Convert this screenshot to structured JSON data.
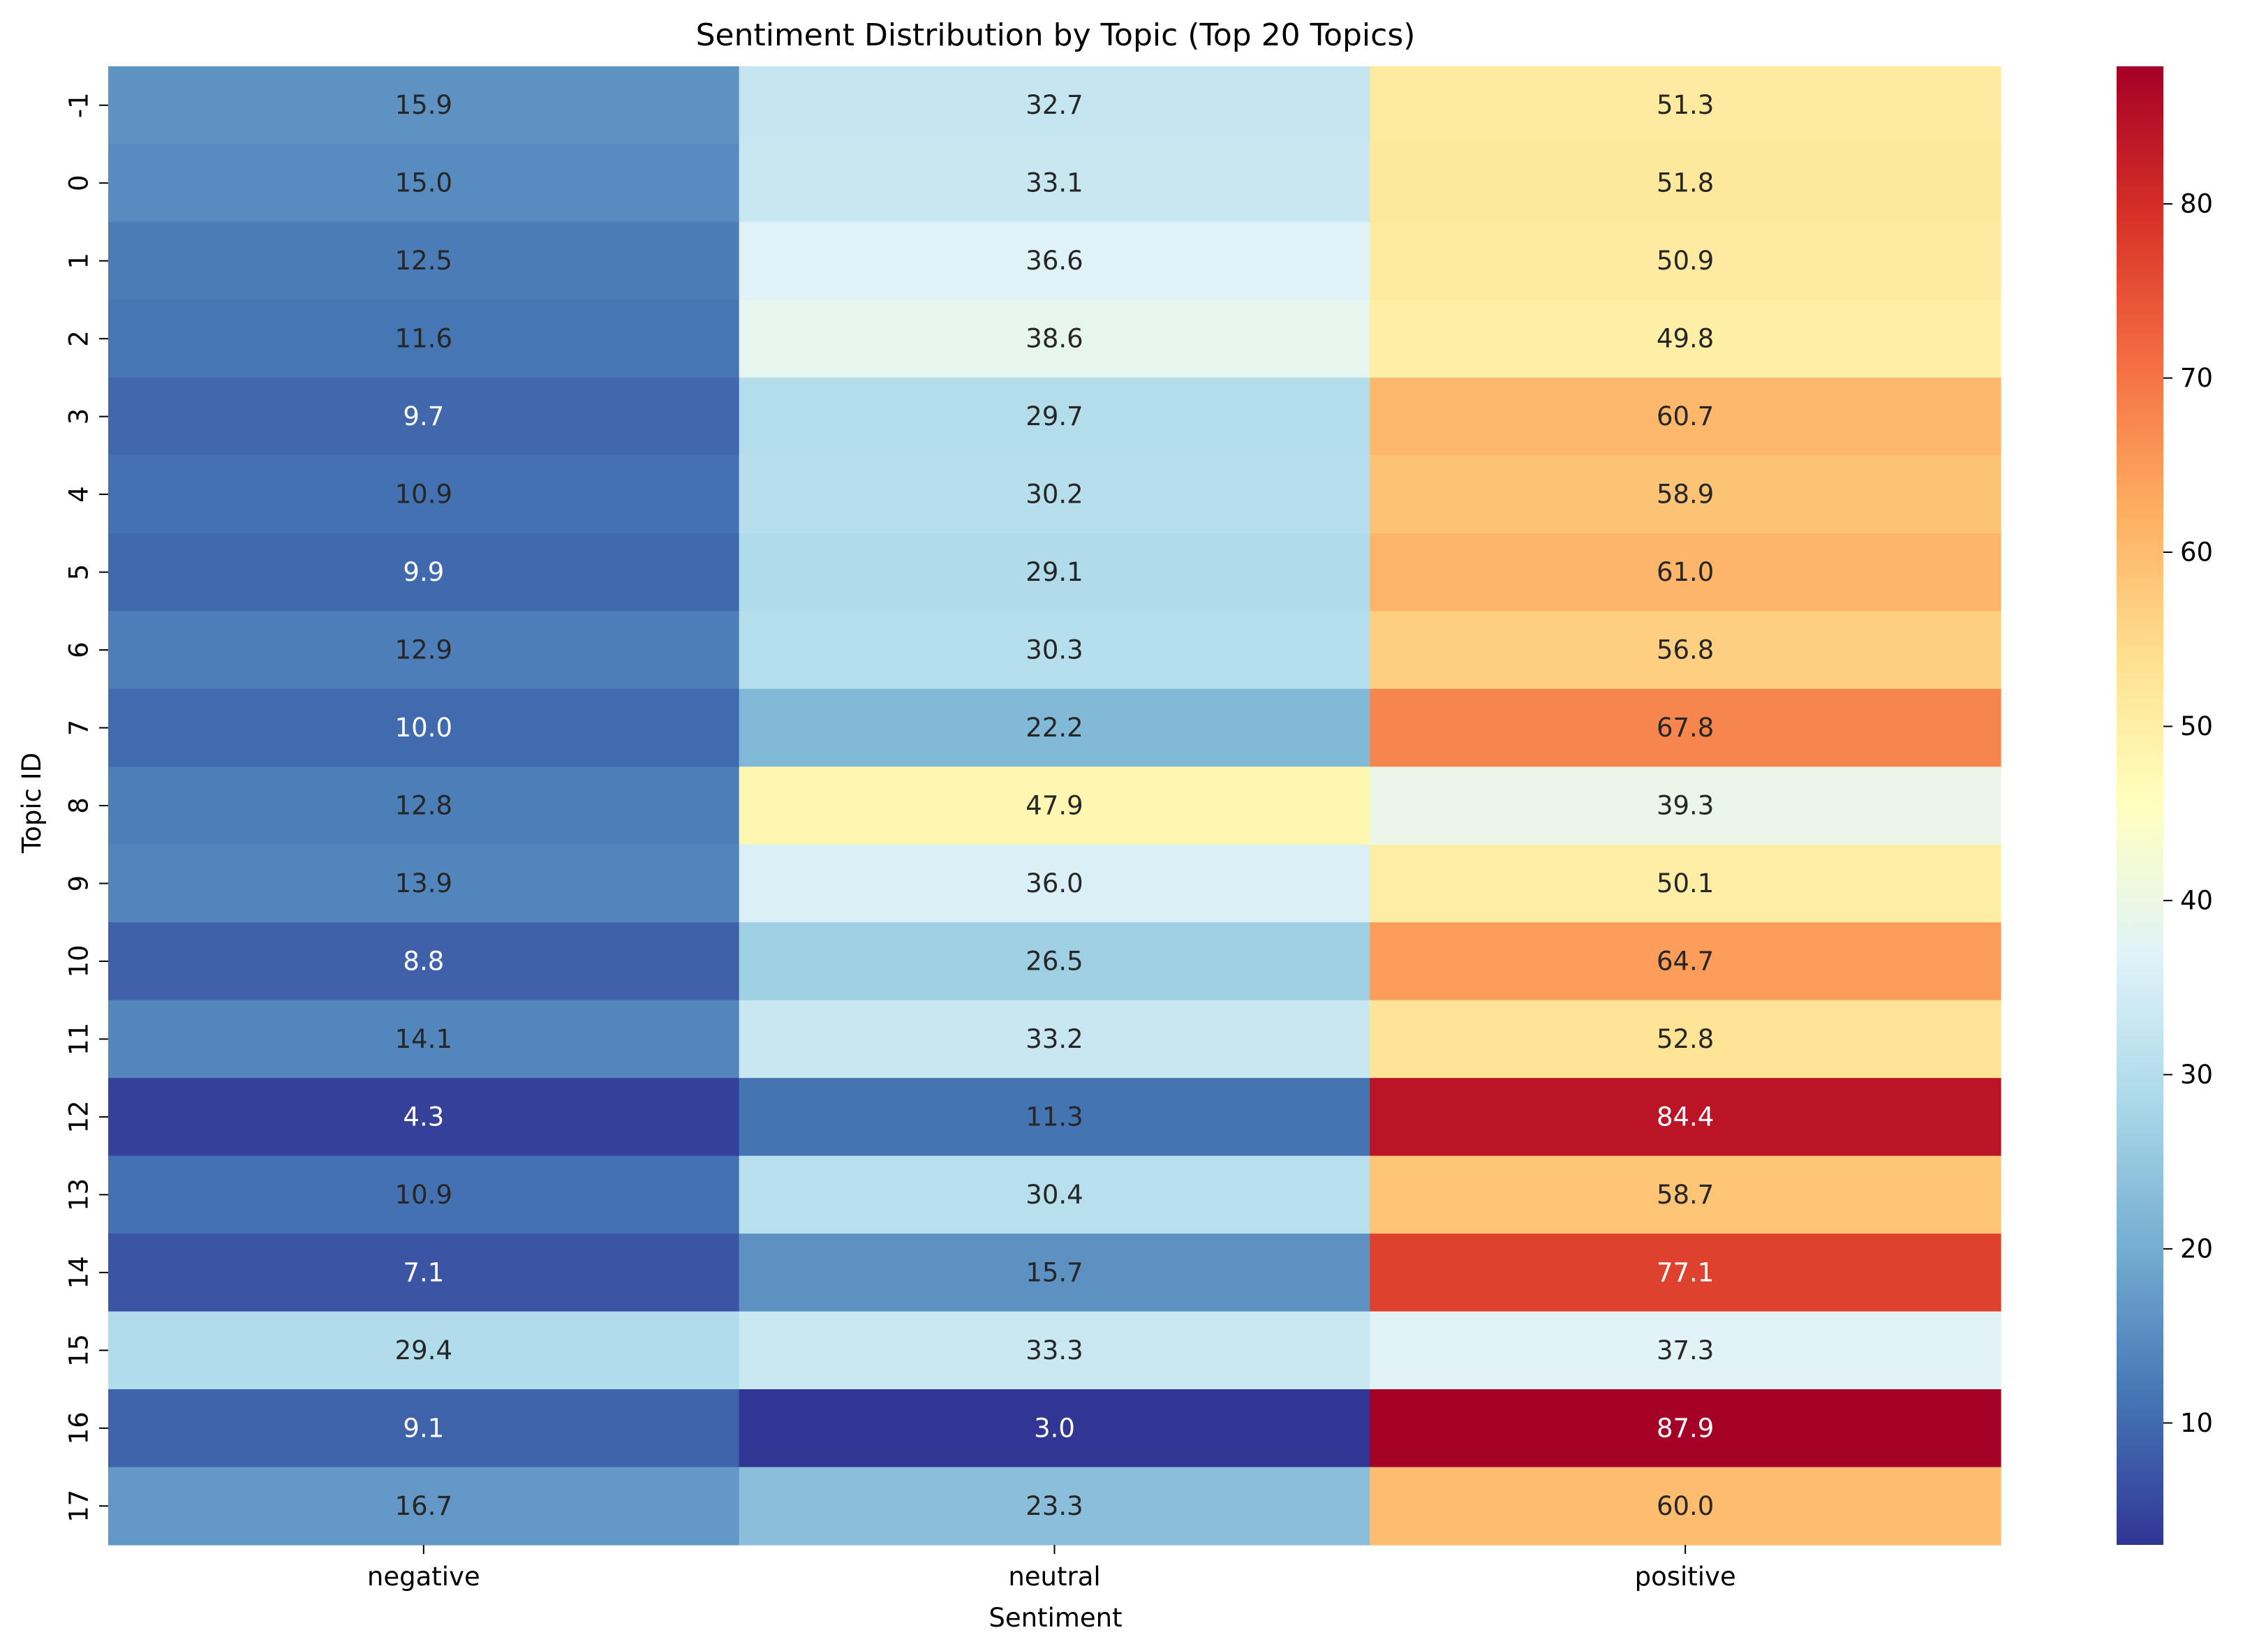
{
  "chart_data": {
    "type": "heatmap",
    "title": "Sentiment Distribution by Topic (Top 20 Topics)",
    "xlabel": "Sentiment",
    "ylabel": "Topic ID",
    "columns": [
      "negative",
      "neutral",
      "positive"
    ],
    "rows": [
      "-1",
      "0",
      "1",
      "2",
      "3",
      "4",
      "5",
      "6",
      "7",
      "8",
      "9",
      "10",
      "11",
      "12",
      "13",
      "14",
      "15",
      "16",
      "17"
    ],
    "values": [
      [
        15.9,
        32.7,
        51.3
      ],
      [
        15.0,
        33.1,
        51.8
      ],
      [
        12.5,
        36.6,
        50.9
      ],
      [
        11.6,
        38.6,
        49.8
      ],
      [
        9.7,
        29.7,
        60.7
      ],
      [
        10.9,
        30.2,
        58.9
      ],
      [
        9.9,
        29.1,
        61.0
      ],
      [
        12.9,
        30.3,
        56.8
      ],
      [
        10.0,
        22.2,
        67.8
      ],
      [
        12.8,
        47.9,
        39.3
      ],
      [
        13.9,
        36.0,
        50.1
      ],
      [
        8.8,
        26.5,
        64.7
      ],
      [
        14.1,
        33.2,
        52.8
      ],
      [
        4.3,
        11.3,
        84.4
      ],
      [
        10.9,
        30.4,
        58.7
      ],
      [
        7.1,
        15.7,
        77.1
      ],
      [
        29.4,
        33.3,
        37.3
      ],
      [
        9.1,
        3.0,
        87.9
      ],
      [
        16.7,
        23.3,
        60.0
      ]
    ],
    "value_format": "0.0",
    "colormap": "RdYlBu_r",
    "colorbar": {
      "range": [
        3.0,
        87.9
      ],
      "ticks": [
        10,
        20,
        30,
        40,
        50,
        60,
        70,
        80
      ]
    },
    "grid": false,
    "legend": "colorbar-right"
  }
}
